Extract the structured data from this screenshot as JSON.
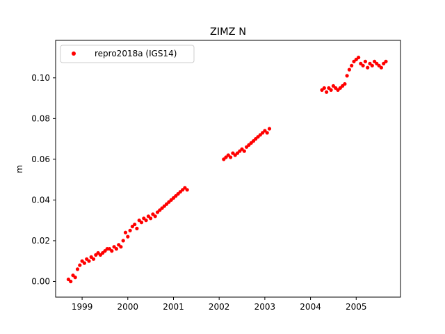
{
  "chart_data": {
    "type": "scatter",
    "title": "ZIMZ N",
    "xlabel": "",
    "ylabel": "m",
    "xlim": [
      1998.42,
      2005.97
    ],
    "ylim": [
      -0.0077,
      0.1184
    ],
    "xticks": [
      1999,
      2000,
      2001,
      2002,
      2003,
      2004,
      2005
    ],
    "xtick_labels": [
      "1999",
      "2000",
      "2001",
      "2002",
      "2003",
      "2004",
      "2005"
    ],
    "yticks": [
      0.0,
      0.02,
      0.04,
      0.06,
      0.08,
      0.1
    ],
    "ytick_labels": [
      "0.00",
      "0.02",
      "0.04",
      "0.06",
      "0.08",
      "0.10"
    ],
    "grid": false,
    "legend": {
      "placement": "top-left"
    },
    "series": [
      {
        "name": "repro2018a (IGS14)",
        "color": "#ff0000",
        "marker": "circle",
        "x": [
          1998.7,
          1998.75,
          1998.8,
          1998.85,
          1998.9,
          1998.95,
          1999.0,
          1999.05,
          1999.1,
          1999.15,
          1999.2,
          1999.25,
          1999.3,
          1999.35,
          1999.4,
          1999.45,
          1999.5,
          1999.55,
          1999.6,
          1999.65,
          1999.7,
          1999.75,
          1999.8,
          1999.85,
          1999.9,
          1999.95,
          2000.0,
          2000.05,
          2000.1,
          2000.15,
          2000.2,
          2000.25,
          2000.3,
          2000.35,
          2000.4,
          2000.45,
          2000.5,
          2000.55,
          2000.6,
          2000.65,
          2000.7,
          2000.75,
          2000.8,
          2000.85,
          2000.9,
          2000.95,
          2001.0,
          2001.05,
          2001.1,
          2001.15,
          2001.2,
          2001.25,
          2001.3,
          2002.1,
          2002.15,
          2002.2,
          2002.25,
          2002.3,
          2002.35,
          2002.4,
          2002.45,
          2002.5,
          2002.55,
          2002.6,
          2002.65,
          2002.7,
          2002.75,
          2002.8,
          2002.85,
          2002.9,
          2002.95,
          2003.0,
          2003.05,
          2003.1,
          2004.25,
          2004.3,
          2004.35,
          2004.4,
          2004.45,
          2004.5,
          2004.55,
          2004.6,
          2004.65,
          2004.7,
          2004.75,
          2004.8,
          2004.85,
          2004.9,
          2004.95,
          2005.0,
          2005.05,
          2005.1,
          2005.15,
          2005.2,
          2005.25,
          2005.3,
          2005.35,
          2005.4,
          2005.45,
          2005.5,
          2005.55,
          2005.6,
          2005.65
        ],
        "y": [
          0.001,
          0.0,
          0.003,
          0.002,
          0.006,
          0.008,
          0.01,
          0.009,
          0.011,
          0.01,
          0.012,
          0.011,
          0.013,
          0.014,
          0.013,
          0.014,
          0.015,
          0.016,
          0.016,
          0.015,
          0.017,
          0.016,
          0.018,
          0.017,
          0.02,
          0.024,
          0.022,
          0.025,
          0.027,
          0.028,
          0.026,
          0.03,
          0.029,
          0.031,
          0.03,
          0.032,
          0.031,
          0.033,
          0.032,
          0.034,
          0.035,
          0.036,
          0.037,
          0.038,
          0.039,
          0.04,
          0.041,
          0.042,
          0.043,
          0.044,
          0.045,
          0.046,
          0.045,
          0.06,
          0.061,
          0.062,
          0.061,
          0.063,
          0.062,
          0.063,
          0.064,
          0.065,
          0.064,
          0.066,
          0.067,
          0.068,
          0.069,
          0.07,
          0.071,
          0.072,
          0.073,
          0.074,
          0.073,
          0.075,
          0.094,
          0.095,
          0.093,
          0.095,
          0.094,
          0.096,
          0.095,
          0.094,
          0.095,
          0.096,
          0.097,
          0.101,
          0.104,
          0.106,
          0.108,
          0.109,
          0.11,
          0.107,
          0.106,
          0.108,
          0.105,
          0.107,
          0.106,
          0.108,
          0.107,
          0.106,
          0.105,
          0.107,
          0.108
        ]
      }
    ]
  }
}
